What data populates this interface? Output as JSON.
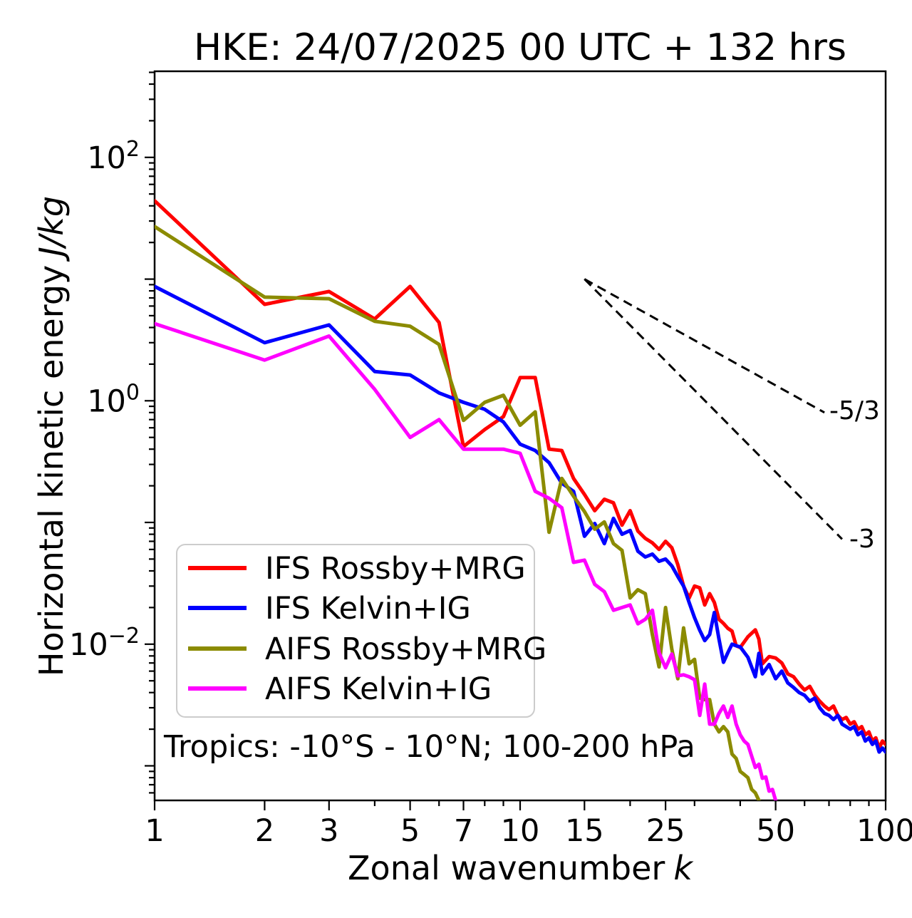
{
  "chart_data": {
    "type": "line",
    "title": "HKE: 24/07/2025 00 UTC + 132 hrs",
    "xlabel": "Zonal wavenumber",
    "xlabel_var": "k",
    "ylabel": "Horizontal kinetic energy",
    "ylabel_var": "J/kg",
    "annotation": "Tropics: -10°S - 10°N; 100-200 hPa",
    "x_scale": "log",
    "y_scale": "log",
    "xlim": [
      1,
      100
    ],
    "ylim": [
      0.00052,
      510
    ],
    "grid": false,
    "legend_position": "lower-left",
    "x_ticks": {
      "major_values": [
        1,
        2,
        3,
        5,
        7,
        10,
        15,
        25,
        50,
        100
      ],
      "major_labels": [
        "1",
        "2",
        "3",
        "5",
        "7",
        "10",
        "15",
        "25",
        "50",
        "100"
      ],
      "minor_values": [
        4,
        6,
        8,
        9,
        20,
        30,
        40,
        60,
        70,
        80,
        90
      ]
    },
    "y_ticks": [
      {
        "value": 100,
        "base": "10",
        "exp": "2"
      },
      {
        "value": 1,
        "base": "10",
        "exp": "0"
      },
      {
        "value": 0.01,
        "base": "10",
        "exp": "−2"
      }
    ],
    "series": [
      {
        "name": "IFS Rossby+MRG",
        "color": "#ff0000",
        "k": [
          1,
          2,
          3,
          4,
          5,
          6,
          7,
          8,
          9,
          10,
          11,
          12,
          13,
          14,
          15,
          16,
          17,
          18,
          19,
          20,
          21,
          22,
          23,
          24,
          25,
          26,
          27,
          28,
          29,
          30,
          31,
          32,
          33,
          34,
          35,
          36,
          37,
          38,
          39,
          40,
          42,
          44,
          45,
          46,
          48,
          50,
          52,
          54,
          56,
          58,
          60,
          62,
          64,
          66,
          68,
          70,
          72,
          74,
          76,
          78,
          80,
          82,
          84,
          86,
          88,
          90,
          92,
          94,
          96,
          98,
          100
        ],
        "E": [
          44,
          6.2,
          7.9,
          4.7,
          8.7,
          4.4,
          0.42,
          0.58,
          0.74,
          1.55,
          1.55,
          0.4,
          0.39,
          0.23,
          0.17,
          0.125,
          0.155,
          0.145,
          0.095,
          0.125,
          0.085,
          0.074,
          0.068,
          0.06,
          0.07,
          0.062,
          0.045,
          0.03,
          0.024,
          0.03,
          0.029,
          0.021,
          0.026,
          0.022,
          0.016,
          0.0148,
          0.0135,
          0.0128,
          0.0097,
          0.0094,
          0.0115,
          0.0131,
          0.011,
          0.0069,
          0.0079,
          0.0077,
          0.007,
          0.0057,
          0.0054,
          0.0047,
          0.0042,
          0.0045,
          0.0038,
          0.0034,
          0.0031,
          0.0029,
          0.0031,
          0.0026,
          0.0024,
          0.0025,
          0.0022,
          0.0023,
          0.002,
          0.0021,
          0.0018,
          0.0019,
          0.0016,
          0.0017,
          0.0014,
          0.0016,
          0.0015
        ]
      },
      {
        "name": "IFS Kelvin+IG",
        "color": "#0000ff",
        "k": [
          1,
          2,
          3,
          4,
          5,
          6,
          7,
          8,
          9,
          10,
          11,
          12,
          13,
          14,
          15,
          16,
          17,
          18,
          19,
          20,
          21,
          22,
          23,
          24,
          25,
          26,
          27,
          28,
          29,
          30,
          31,
          32,
          33,
          34,
          35,
          36,
          37,
          38,
          39,
          40,
          42,
          44,
          45,
          46,
          48,
          50,
          52,
          54,
          56,
          58,
          60,
          62,
          64,
          66,
          68,
          70,
          72,
          74,
          76,
          78,
          80,
          82,
          84,
          86,
          88,
          90,
          92,
          94,
          96,
          98,
          100
        ],
        "E": [
          8.7,
          3.0,
          4.2,
          1.74,
          1.63,
          1.16,
          0.97,
          0.85,
          0.67,
          0.44,
          0.39,
          0.31,
          0.21,
          0.18,
          0.077,
          0.098,
          0.067,
          0.108,
          0.08,
          0.086,
          0.058,
          0.052,
          0.055,
          0.048,
          0.05,
          0.044,
          0.036,
          0.03,
          0.022,
          0.0165,
          0.013,
          0.0107,
          0.012,
          0.0182,
          0.011,
          0.0071,
          0.0085,
          0.01,
          0.0097,
          0.0095,
          0.0078,
          0.0054,
          0.0084,
          0.0057,
          0.0068,
          0.0052,
          0.006,
          0.0048,
          0.0044,
          0.004,
          0.0038,
          0.0034,
          0.0036,
          0.003,
          0.0027,
          0.0026,
          0.0024,
          0.0026,
          0.0022,
          0.0021,
          0.002,
          0.0021,
          0.0018,
          0.0019,
          0.0016,
          0.0017,
          0.0015,
          0.0016,
          0.0013,
          0.0014,
          0.0013
        ]
      },
      {
        "name": "AIFS Rossby+MRG",
        "color": "#8b8b00",
        "k": [
          1,
          2,
          3,
          4,
          5,
          6,
          7,
          8,
          9,
          10,
          11,
          12,
          13,
          14,
          15,
          16,
          17,
          18,
          19,
          20,
          21,
          22,
          23,
          24,
          25,
          26,
          27,
          28,
          29,
          30,
          31,
          32,
          33,
          34,
          35,
          36,
          37,
          38,
          39,
          40,
          41,
          42,
          43,
          44,
          45,
          46,
          47
        ],
        "E": [
          27,
          7.1,
          6.9,
          4.5,
          4.1,
          2.9,
          0.69,
          0.97,
          1.11,
          0.63,
          0.81,
          0.083,
          0.23,
          0.164,
          0.123,
          0.088,
          0.101,
          0.067,
          0.059,
          0.024,
          0.028,
          0.026,
          0.012,
          0.0065,
          0.02,
          0.0091,
          0.0052,
          0.0136,
          0.0069,
          0.0075,
          0.0036,
          0.0035,
          0.0035,
          0.0022,
          0.0019,
          0.0021,
          0.0019,
          0.00125,
          0.00115,
          0.0009,
          0.00085,
          0.0008,
          0.00064,
          0.0006,
          0.00052,
          0.00045,
          0.0004
        ]
      },
      {
        "name": "AIFS Kelvin+IG",
        "color": "#ff00ff",
        "k": [
          1,
          2,
          3,
          4,
          5,
          6,
          7,
          8,
          9,
          10,
          11,
          12,
          13,
          14,
          15,
          16,
          17,
          18,
          19,
          20,
          21,
          22,
          23,
          24,
          25,
          26,
          27,
          28,
          29,
          30,
          31,
          32,
          33,
          34,
          35,
          36,
          37,
          38,
          39,
          40,
          41,
          42,
          43,
          44,
          45,
          46,
          47,
          48,
          49,
          50,
          51
        ],
        "E": [
          4.3,
          2.16,
          3.4,
          1.24,
          0.5,
          0.7,
          0.4,
          0.4,
          0.4,
          0.37,
          0.18,
          0.158,
          0.132,
          0.047,
          0.049,
          0.031,
          0.027,
          0.019,
          0.02,
          0.021,
          0.0147,
          0.016,
          0.019,
          0.0085,
          0.0064,
          0.0083,
          0.0055,
          0.0056,
          0.0054,
          0.0051,
          0.0026,
          0.0047,
          0.0022,
          0.0022,
          0.0027,
          0.0031,
          0.0025,
          0.0031,
          0.0022,
          0.0018,
          0.0016,
          0.0015,
          0.0012,
          0.00097,
          0.00103,
          0.00079,
          0.00081,
          0.00062,
          0.00064,
          0.00052,
          0.00045
        ]
      }
    ],
    "reference_lines": [
      {
        "label": "-5/3",
        "slope": "-5/3",
        "x1": 15,
        "y1": 10,
        "x2": 68,
        "y2": 0.8
      },
      {
        "label": "-3",
        "slope": "-3",
        "x1": 15,
        "y1": 10,
        "x2": 76,
        "y2": 0.073
      }
    ]
  }
}
